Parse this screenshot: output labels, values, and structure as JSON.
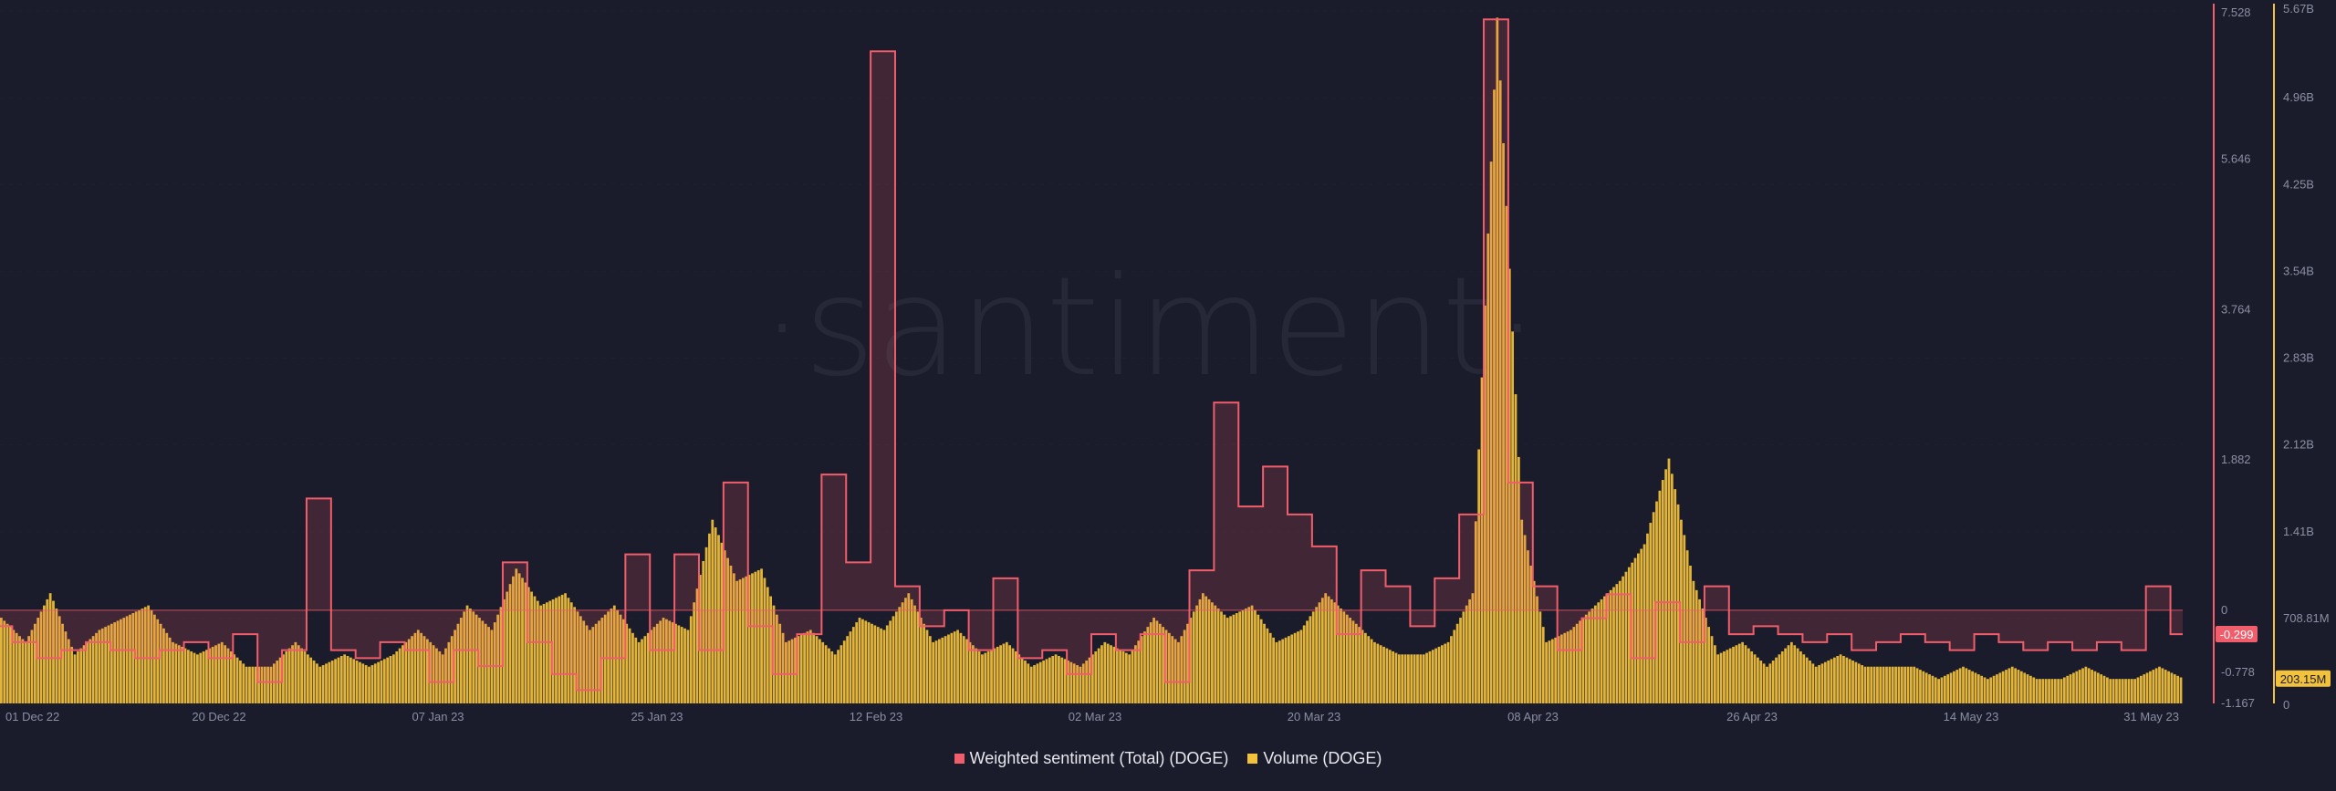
{
  "chart_data": {
    "type": "line+bar",
    "watermark": "·santiment·",
    "x_labels": [
      "01 Dec 22",
      "20 Dec 22",
      "07 Jan 23",
      "25 Jan 23",
      "12 Feb 23",
      "02 Mar 23",
      "20 Mar 23",
      "08 Apr 23",
      "26 Apr 23",
      "14 May 23",
      "31 May 23"
    ],
    "left_axis": {
      "ticks": [
        "7.528",
        "5.646",
        "3.764",
        "1.882",
        "0",
        "-0.778",
        "-1.167"
      ],
      "current": "-0.299"
    },
    "right_axis": {
      "ticks": [
        "5.67B",
        "4.96B",
        "4.25B",
        "3.54B",
        "2.83B",
        "2.12B",
        "1.41B",
        "708.81M",
        "0"
      ],
      "current": "203.15M"
    },
    "series": [
      {
        "name": "Weighted sentiment (Total) (DOGE)",
        "color": "#f05d6b",
        "type": "line",
        "points": [
          [
            0,
            -0.2
          ],
          [
            1,
            -0.4
          ],
          [
            2,
            -0.6
          ],
          [
            3,
            -0.5
          ],
          [
            4,
            -0.4
          ],
          [
            5,
            -0.5
          ],
          [
            6,
            -0.6
          ],
          [
            7,
            -0.5
          ],
          [
            8,
            -0.4
          ],
          [
            9,
            -0.6
          ],
          [
            10,
            -0.3
          ],
          [
            11,
            -0.9
          ],
          [
            12,
            -0.5
          ],
          [
            13,
            1.4
          ],
          [
            14,
            -0.5
          ],
          [
            15,
            -0.6
          ],
          [
            16,
            -0.4
          ],
          [
            17,
            -0.5
          ],
          [
            18,
            -0.9
          ],
          [
            19,
            -0.5
          ],
          [
            20,
            -0.7
          ],
          [
            21,
            0.6
          ],
          [
            22,
            -0.4
          ],
          [
            23,
            -0.8
          ],
          [
            24,
            -1.0
          ],
          [
            25,
            -0.6
          ],
          [
            26,
            0.7
          ],
          [
            27,
            -0.5
          ],
          [
            28,
            0.7
          ],
          [
            29,
            -0.5
          ],
          [
            30,
            1.6
          ],
          [
            31,
            -0.2
          ],
          [
            32,
            -0.8
          ],
          [
            33,
            -0.3
          ],
          [
            34,
            1.7
          ],
          [
            35,
            0.6
          ],
          [
            36,
            7.0
          ],
          [
            37,
            0.3
          ],
          [
            38,
            -0.2
          ],
          [
            39,
            0.0
          ],
          [
            40,
            -0.5
          ],
          [
            41,
            0.4
          ],
          [
            42,
            -0.6
          ],
          [
            43,
            -0.5
          ],
          [
            44,
            -0.8
          ],
          [
            45,
            -0.3
          ],
          [
            46,
            -0.5
          ],
          [
            47,
            -0.3
          ],
          [
            48,
            -0.9
          ],
          [
            49,
            0.5
          ],
          [
            50,
            2.6
          ],
          [
            51,
            1.3
          ],
          [
            52,
            1.8
          ],
          [
            53,
            1.2
          ],
          [
            54,
            0.8
          ],
          [
            55,
            -0.3
          ],
          [
            56,
            0.5
          ],
          [
            57,
            0.3
          ],
          [
            58,
            -0.2
          ],
          [
            59,
            0.4
          ],
          [
            60,
            1.2
          ],
          [
            61,
            7.4
          ],
          [
            62,
            1.6
          ],
          [
            63,
            0.3
          ],
          [
            64,
            -0.5
          ],
          [
            65,
            -0.1
          ],
          [
            66,
            0.2
          ],
          [
            67,
            -0.6
          ],
          [
            68,
            0.1
          ],
          [
            69,
            -0.4
          ],
          [
            70,
            0.3
          ],
          [
            71,
            -0.3
          ],
          [
            72,
            -0.2
          ],
          [
            73,
            -0.3
          ],
          [
            74,
            -0.4
          ],
          [
            75,
            -0.3
          ],
          [
            76,
            -0.5
          ],
          [
            77,
            -0.4
          ],
          [
            78,
            -0.3
          ],
          [
            79,
            -0.4
          ],
          [
            80,
            -0.5
          ],
          [
            81,
            -0.3
          ],
          [
            82,
            -0.4
          ],
          [
            83,
            -0.5
          ],
          [
            84,
            -0.4
          ],
          [
            85,
            -0.5
          ],
          [
            86,
            -0.4
          ],
          [
            87,
            -0.5
          ],
          [
            88,
            0.3
          ],
          [
            89,
            -0.3
          ]
        ]
      },
      {
        "name": "Volume (DOGE)",
        "color": "#f3c23c",
        "type": "bar",
        "unit": "billions",
        "points": [
          [
            0,
            0.7
          ],
          [
            1,
            0.5
          ],
          [
            2,
            0.9
          ],
          [
            3,
            0.4
          ],
          [
            4,
            0.6
          ],
          [
            5,
            0.7
          ],
          [
            6,
            0.8
          ],
          [
            7,
            0.5
          ],
          [
            8,
            0.4
          ],
          [
            9,
            0.5
          ],
          [
            10,
            0.3
          ],
          [
            11,
            0.3
          ],
          [
            12,
            0.5
          ],
          [
            13,
            0.3
          ],
          [
            14,
            0.4
          ],
          [
            15,
            0.3
          ],
          [
            16,
            0.4
          ],
          [
            17,
            0.6
          ],
          [
            18,
            0.4
          ],
          [
            19,
            0.8
          ],
          [
            20,
            0.6
          ],
          [
            21,
            1.1
          ],
          [
            22,
            0.8
          ],
          [
            23,
            0.9
          ],
          [
            24,
            0.6
          ],
          [
            25,
            0.8
          ],
          [
            26,
            0.5
          ],
          [
            27,
            0.7
          ],
          [
            28,
            0.6
          ],
          [
            29,
            1.5
          ],
          [
            30,
            1.0
          ],
          [
            31,
            1.1
          ],
          [
            32,
            0.5
          ],
          [
            33,
            0.6
          ],
          [
            34,
            0.4
          ],
          [
            35,
            0.7
          ],
          [
            36,
            0.6
          ],
          [
            37,
            0.9
          ],
          [
            38,
            0.5
          ],
          [
            39,
            0.6
          ],
          [
            40,
            0.4
          ],
          [
            41,
            0.5
          ],
          [
            42,
            0.3
          ],
          [
            43,
            0.4
          ],
          [
            44,
            0.3
          ],
          [
            45,
            0.5
          ],
          [
            46,
            0.4
          ],
          [
            47,
            0.7
          ],
          [
            48,
            0.5
          ],
          [
            49,
            0.9
          ],
          [
            50,
            0.7
          ],
          [
            51,
            0.8
          ],
          [
            52,
            0.5
          ],
          [
            53,
            0.6
          ],
          [
            54,
            0.9
          ],
          [
            55,
            0.7
          ],
          [
            56,
            0.5
          ],
          [
            57,
            0.4
          ],
          [
            58,
            0.4
          ],
          [
            59,
            0.5
          ],
          [
            60,
            0.9
          ],
          [
            61,
            5.6
          ],
          [
            62,
            1.5
          ],
          [
            63,
            0.5
          ],
          [
            64,
            0.6
          ],
          [
            65,
            0.8
          ],
          [
            66,
            1.0
          ],
          [
            67,
            1.3
          ],
          [
            68,
            2.0
          ],
          [
            69,
            1.0
          ],
          [
            70,
            0.4
          ],
          [
            71,
            0.5
          ],
          [
            72,
            0.3
          ],
          [
            73,
            0.5
          ],
          [
            74,
            0.3
          ],
          [
            75,
            0.4
          ],
          [
            76,
            0.3
          ],
          [
            77,
            0.3
          ],
          [
            78,
            0.3
          ],
          [
            79,
            0.2
          ],
          [
            80,
            0.3
          ],
          [
            81,
            0.2
          ],
          [
            82,
            0.3
          ],
          [
            83,
            0.2
          ],
          [
            84,
            0.2
          ],
          [
            85,
            0.3
          ],
          [
            86,
            0.2
          ],
          [
            87,
            0.2
          ],
          [
            88,
            0.3
          ],
          [
            89,
            0.2
          ]
        ]
      }
    ]
  }
}
